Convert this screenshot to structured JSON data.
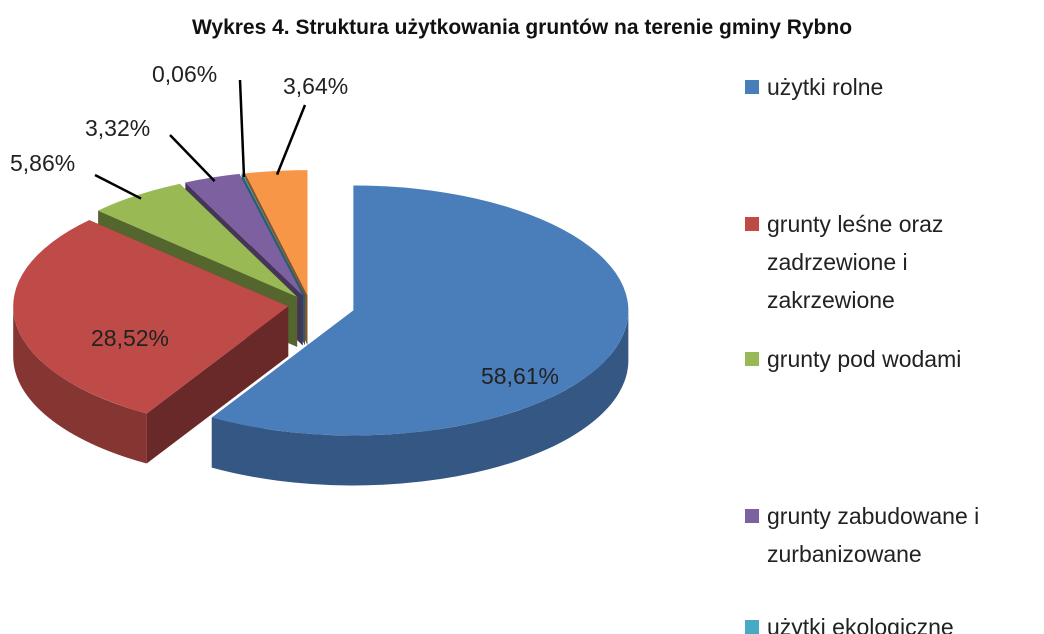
{
  "chart_data": {
    "type": "pie",
    "title": "Wykres 4. Struktura użytkowania gruntów na terenie gminy Rybno",
    "categories": [
      "użytki rolne",
      "grunty leśne oraz zadrzewione i zakrzewione",
      "grunty pod wodami",
      "grunty zabudowane i zurbanizowane",
      "użytki ekologiczne",
      null
    ],
    "values": [
      58.61,
      28.52,
      5.86,
      3.32,
      0.06,
      3.64
    ],
    "value_labels": [
      "58,61%",
      "28,52%",
      "5,86%",
      "3,32%",
      "0,06%",
      "3,64%"
    ],
    "colors": [
      "#4a7ebb",
      "#be4b48",
      "#98b954",
      "#7d60a0",
      "#46aac5",
      "#f79646"
    ],
    "legend": "right"
  }
}
